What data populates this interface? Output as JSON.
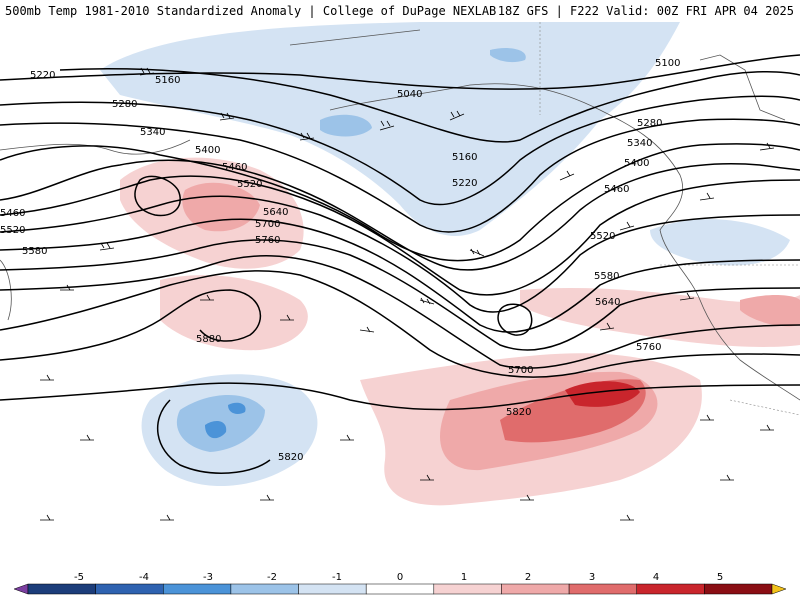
{
  "header": {
    "title_left": "500mb Temp 1981-2010 Standardized Anomaly | College of DuPage NEXLAB",
    "title_right": "18Z GFS | F222 Valid: 00Z FRI APR 04 2025"
  },
  "map": {
    "contour_labels": [
      "5100",
      "5160",
      "5040",
      "5160",
      "5220",
      "5220",
      "5280",
      "5340",
      "5280",
      "5340",
      "5400",
      "5460",
      "5520",
      "5400",
      "5460",
      "5520",
      "5580",
      "5460",
      "5640",
      "5700",
      "5760",
      "5520",
      "5580",
      "5640",
      "5760",
      "5880",
      "5700",
      "5820",
      "5820"
    ]
  },
  "colorbar": {
    "ticks": [
      "-5",
      "-4",
      "-3",
      "-2",
      "-1",
      "0",
      "1",
      "2",
      "3",
      "4",
      "5"
    ],
    "colors": [
      "#7b3fa0",
      "#1c3d7a",
      "#2e62b0",
      "#4b93d8",
      "#9cc3e8",
      "#d4e3f3",
      "#ffffff",
      "#f6d2d2",
      "#efa9a9",
      "#e06c6c",
      "#c9252c",
      "#8a0e14",
      "#f2c21c"
    ]
  }
}
